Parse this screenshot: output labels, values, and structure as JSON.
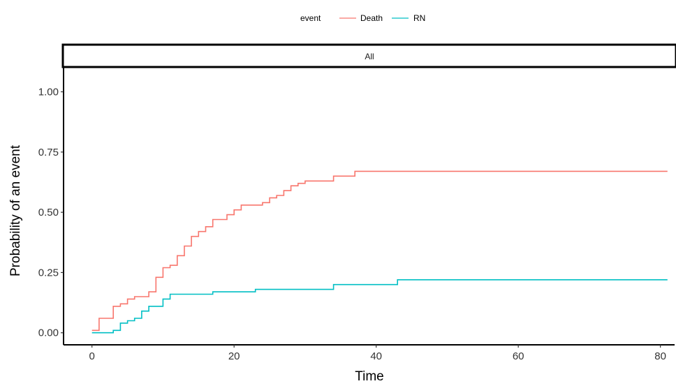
{
  "chart_data": {
    "type": "line",
    "step": true,
    "facet_label": "All",
    "xlabel": "Time",
    "ylabel": "Probability of an event",
    "xlim": [
      -4,
      82
    ],
    "ylim": [
      -0.05,
      1.1
    ],
    "x_ticks": [
      0,
      20,
      40,
      60,
      80
    ],
    "y_ticks": [
      0.0,
      0.25,
      0.5,
      0.75,
      1.0
    ],
    "x_tick_labels": [
      "0",
      "20",
      "40",
      "60",
      "80"
    ],
    "y_tick_labels": [
      "0.00",
      "0.25",
      "0.50",
      "0.75",
      "1.00"
    ],
    "grid": false,
    "legend": {
      "title": "event",
      "position": "top",
      "entries": [
        "Death",
        "RN"
      ]
    },
    "series": [
      {
        "name": "Death",
        "color": "#f8766d",
        "x": [
          0,
          1,
          3,
          4,
          5,
          6,
          7,
          8,
          9,
          10,
          11,
          12,
          13,
          14,
          15,
          16,
          17,
          19,
          20,
          21,
          23,
          24,
          25,
          26,
          27,
          28,
          29,
          30,
          34,
          37,
          81
        ],
        "y": [
          0.01,
          0.06,
          0.11,
          0.12,
          0.14,
          0.15,
          0.15,
          0.17,
          0.23,
          0.27,
          0.28,
          0.32,
          0.36,
          0.4,
          0.42,
          0.44,
          0.47,
          0.49,
          0.51,
          0.53,
          0.53,
          0.54,
          0.56,
          0.57,
          0.59,
          0.61,
          0.62,
          0.63,
          0.65,
          0.67,
          0.67
        ]
      },
      {
        "name": "RN",
        "color": "#00bfc4",
        "x": [
          0,
          3,
          4,
          5,
          6,
          7,
          8,
          10,
          11,
          17,
          23,
          34,
          43,
          81
        ],
        "y": [
          0.0,
          0.01,
          0.04,
          0.05,
          0.06,
          0.09,
          0.11,
          0.14,
          0.16,
          0.17,
          0.18,
          0.2,
          0.22,
          0.22
        ]
      }
    ]
  }
}
